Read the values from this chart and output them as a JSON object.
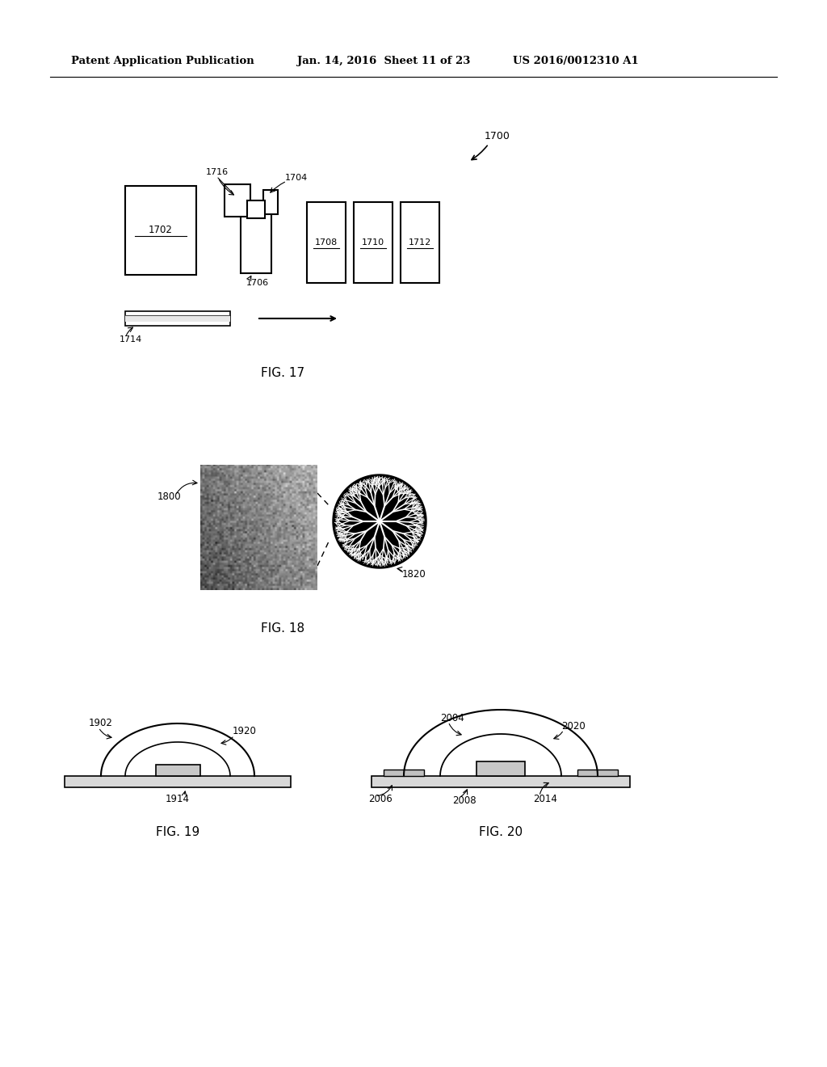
{
  "bg_color": "#ffffff",
  "header_text": "Patent Application Publication",
  "header_date": "Jan. 14, 2016  Sheet 11 of 23",
  "header_patent": "US 2016/0012310 A1",
  "fig17_label": "FIG. 17",
  "fig18_label": "FIG. 18",
  "fig19_label": "FIG. 19",
  "fig20_label": "FIG. 20",
  "label_1700": "1700",
  "label_1702": "1702",
  "label_1704": "1704",
  "label_1706": "1706",
  "label_1708": "1708",
  "label_1710": "1710",
  "label_1712": "1712",
  "label_1714": "1714",
  "label_1716": "1716",
  "label_1800": "1800",
  "label_1820": "1820",
  "label_1902": "1902",
  "label_1914": "1914",
  "label_1920": "1920",
  "label_2004": "2004",
  "label_2006": "2006",
  "label_2008": "2008",
  "label_2014": "2014",
  "label_2020": "2020"
}
